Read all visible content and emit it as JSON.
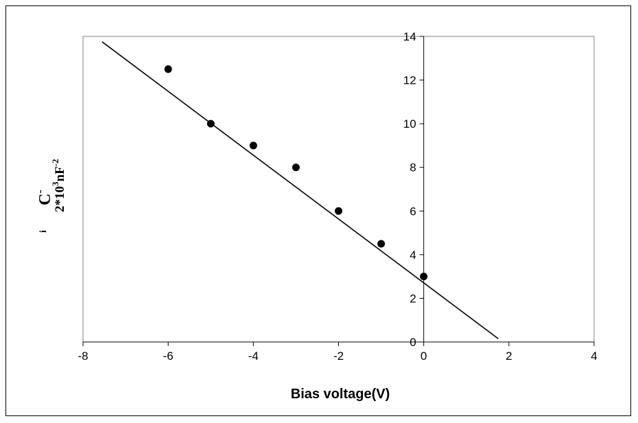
{
  "chart_data": {
    "type": "scatter",
    "xlabel": "Bias voltage(V)",
    "ylabel": {
      "main": "C",
      "superscript": "-",
      "sub": "2*10",
      "sub_sup": "3",
      "sub_tail": "nF",
      "sub_tail_sup": "-2",
      "prefix": "i"
    },
    "xlim": [
      -8,
      4
    ],
    "ylim": [
      0,
      14
    ],
    "xticks": [
      -8,
      -6,
      -4,
      -2,
      0,
      2,
      4
    ],
    "yticks": [
      0,
      2,
      4,
      6,
      8,
      10,
      12,
      14
    ],
    "grid": false,
    "legend": "none",
    "series": [
      {
        "points": [
          {
            "x": -6,
            "y": 12.5
          },
          {
            "x": -5,
            "y": 10.0
          },
          {
            "x": -4,
            "y": 9.0
          },
          {
            "x": -3,
            "y": 8.0
          },
          {
            "x": -2,
            "y": 6.0
          },
          {
            "x": -1,
            "y": 4.5
          },
          {
            "x": 0,
            "y": 3.0
          }
        ],
        "color": "#000000"
      }
    ],
    "trendline": {
      "type": "linear",
      "from": {
        "x": -7.55,
        "y": 13.75
      },
      "to": {
        "x": 1.75,
        "y": 0.15
      },
      "color": "#000000"
    }
  }
}
